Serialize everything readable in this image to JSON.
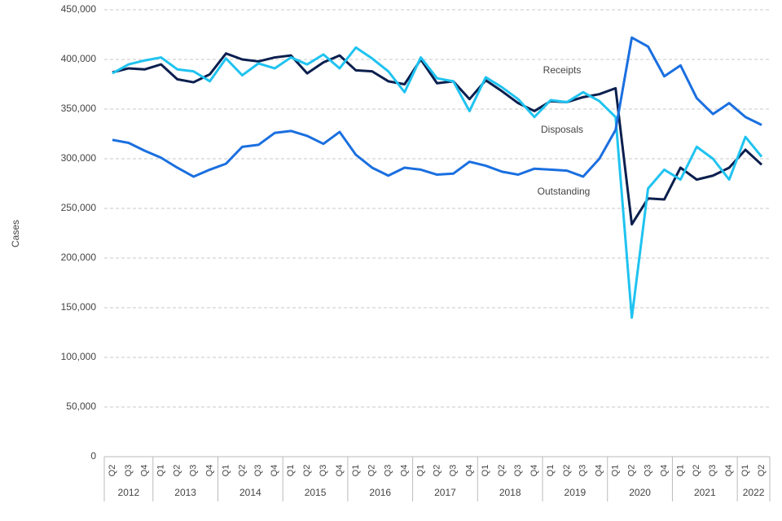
{
  "chart_data": {
    "type": "line",
    "y_label": "Cases",
    "categories": [
      "Q2",
      "Q3",
      "Q4",
      "Q1",
      "Q2",
      "Q3",
      "Q4",
      "Q1",
      "Q2",
      "Q3",
      "Q4",
      "Q1",
      "Q2",
      "Q3",
      "Q4",
      "Q1",
      "Q2",
      "Q3",
      "Q4",
      "Q1",
      "Q2",
      "Q3",
      "Q4",
      "Q1",
      "Q2",
      "Q3",
      "Q4",
      "Q1",
      "Q2",
      "Q3",
      "Q4",
      "Q1",
      "Q2",
      "Q3",
      "Q4",
      "Q1",
      "Q2",
      "Q3",
      "Q4",
      "Q1",
      "Q2"
    ],
    "years": [
      "2012",
      "2013",
      "2014",
      "2015",
      "2016",
      "2017",
      "2018",
      "2019",
      "2020",
      "2021",
      "2022"
    ],
    "ylim": [
      0,
      450000
    ],
    "yticks": [
      0,
      {
        "value": 50000,
        "label": "50,000"
      },
      {
        "value": 100000,
        "label": "100,000"
      },
      {
        "value": 150000,
        "label": "150,000"
      },
      {
        "value": 200000,
        "label": "200,000"
      },
      {
        "value": 250000,
        "label": "250,000"
      },
      {
        "value": 300000,
        "label": "300,000"
      },
      {
        "value": 350000,
        "label": "350,000"
      },
      {
        "value": 400000,
        "label": "400,000"
      },
      {
        "value": 450000,
        "label": "450,000"
      }
    ],
    "grid": true,
    "series": [
      {
        "name": "Receipts",
        "color": "#0b1f4e",
        "values": [
          387000,
          391000,
          390000,
          395000,
          380000,
          377000,
          385000,
          406000,
          400000,
          398000,
          402000,
          404000,
          386000,
          397000,
          404000,
          389000,
          388000,
          378000,
          375000,
          400000,
          376000,
          378000,
          360000,
          379000,
          368000,
          356000,
          348000,
          358000,
          357000,
          362000,
          365000,
          371000,
          234000,
          260000,
          259000,
          291000,
          279000,
          283000,
          291000,
          309000,
          294000
        ]
      },
      {
        "name": "Disposals",
        "color": "#1fc3f0",
        "values": [
          386000,
          395000,
          399000,
          402000,
          390000,
          388000,
          378000,
          401000,
          384000,
          396000,
          391000,
          402000,
          395000,
          405000,
          391000,
          412000,
          401000,
          388000,
          367000,
          402000,
          381000,
          378000,
          348000,
          382000,
          372000,
          360000,
          342000,
          359000,
          357000,
          367000,
          358000,
          342000,
          140000,
          270000,
          289000,
          279000,
          312000,
          300000,
          279000,
          322000,
          302000
        ]
      },
      {
        "name": "Outstanding",
        "color": "#1a6fe0",
        "values": [
          319000,
          316000,
          308000,
          301000,
          291000,
          282000,
          289000,
          295000,
          312000,
          314000,
          326000,
          328000,
          323000,
          315000,
          327000,
          304000,
          291000,
          283000,
          291000,
          289000,
          284000,
          285000,
          297000,
          293000,
          287000,
          284000,
          290000,
          289000,
          288000,
          282000,
          300000,
          329000,
          422000,
          413000,
          383000,
          394000,
          361000,
          345000,
          356000,
          342000,
          334000
        ]
      }
    ]
  }
}
